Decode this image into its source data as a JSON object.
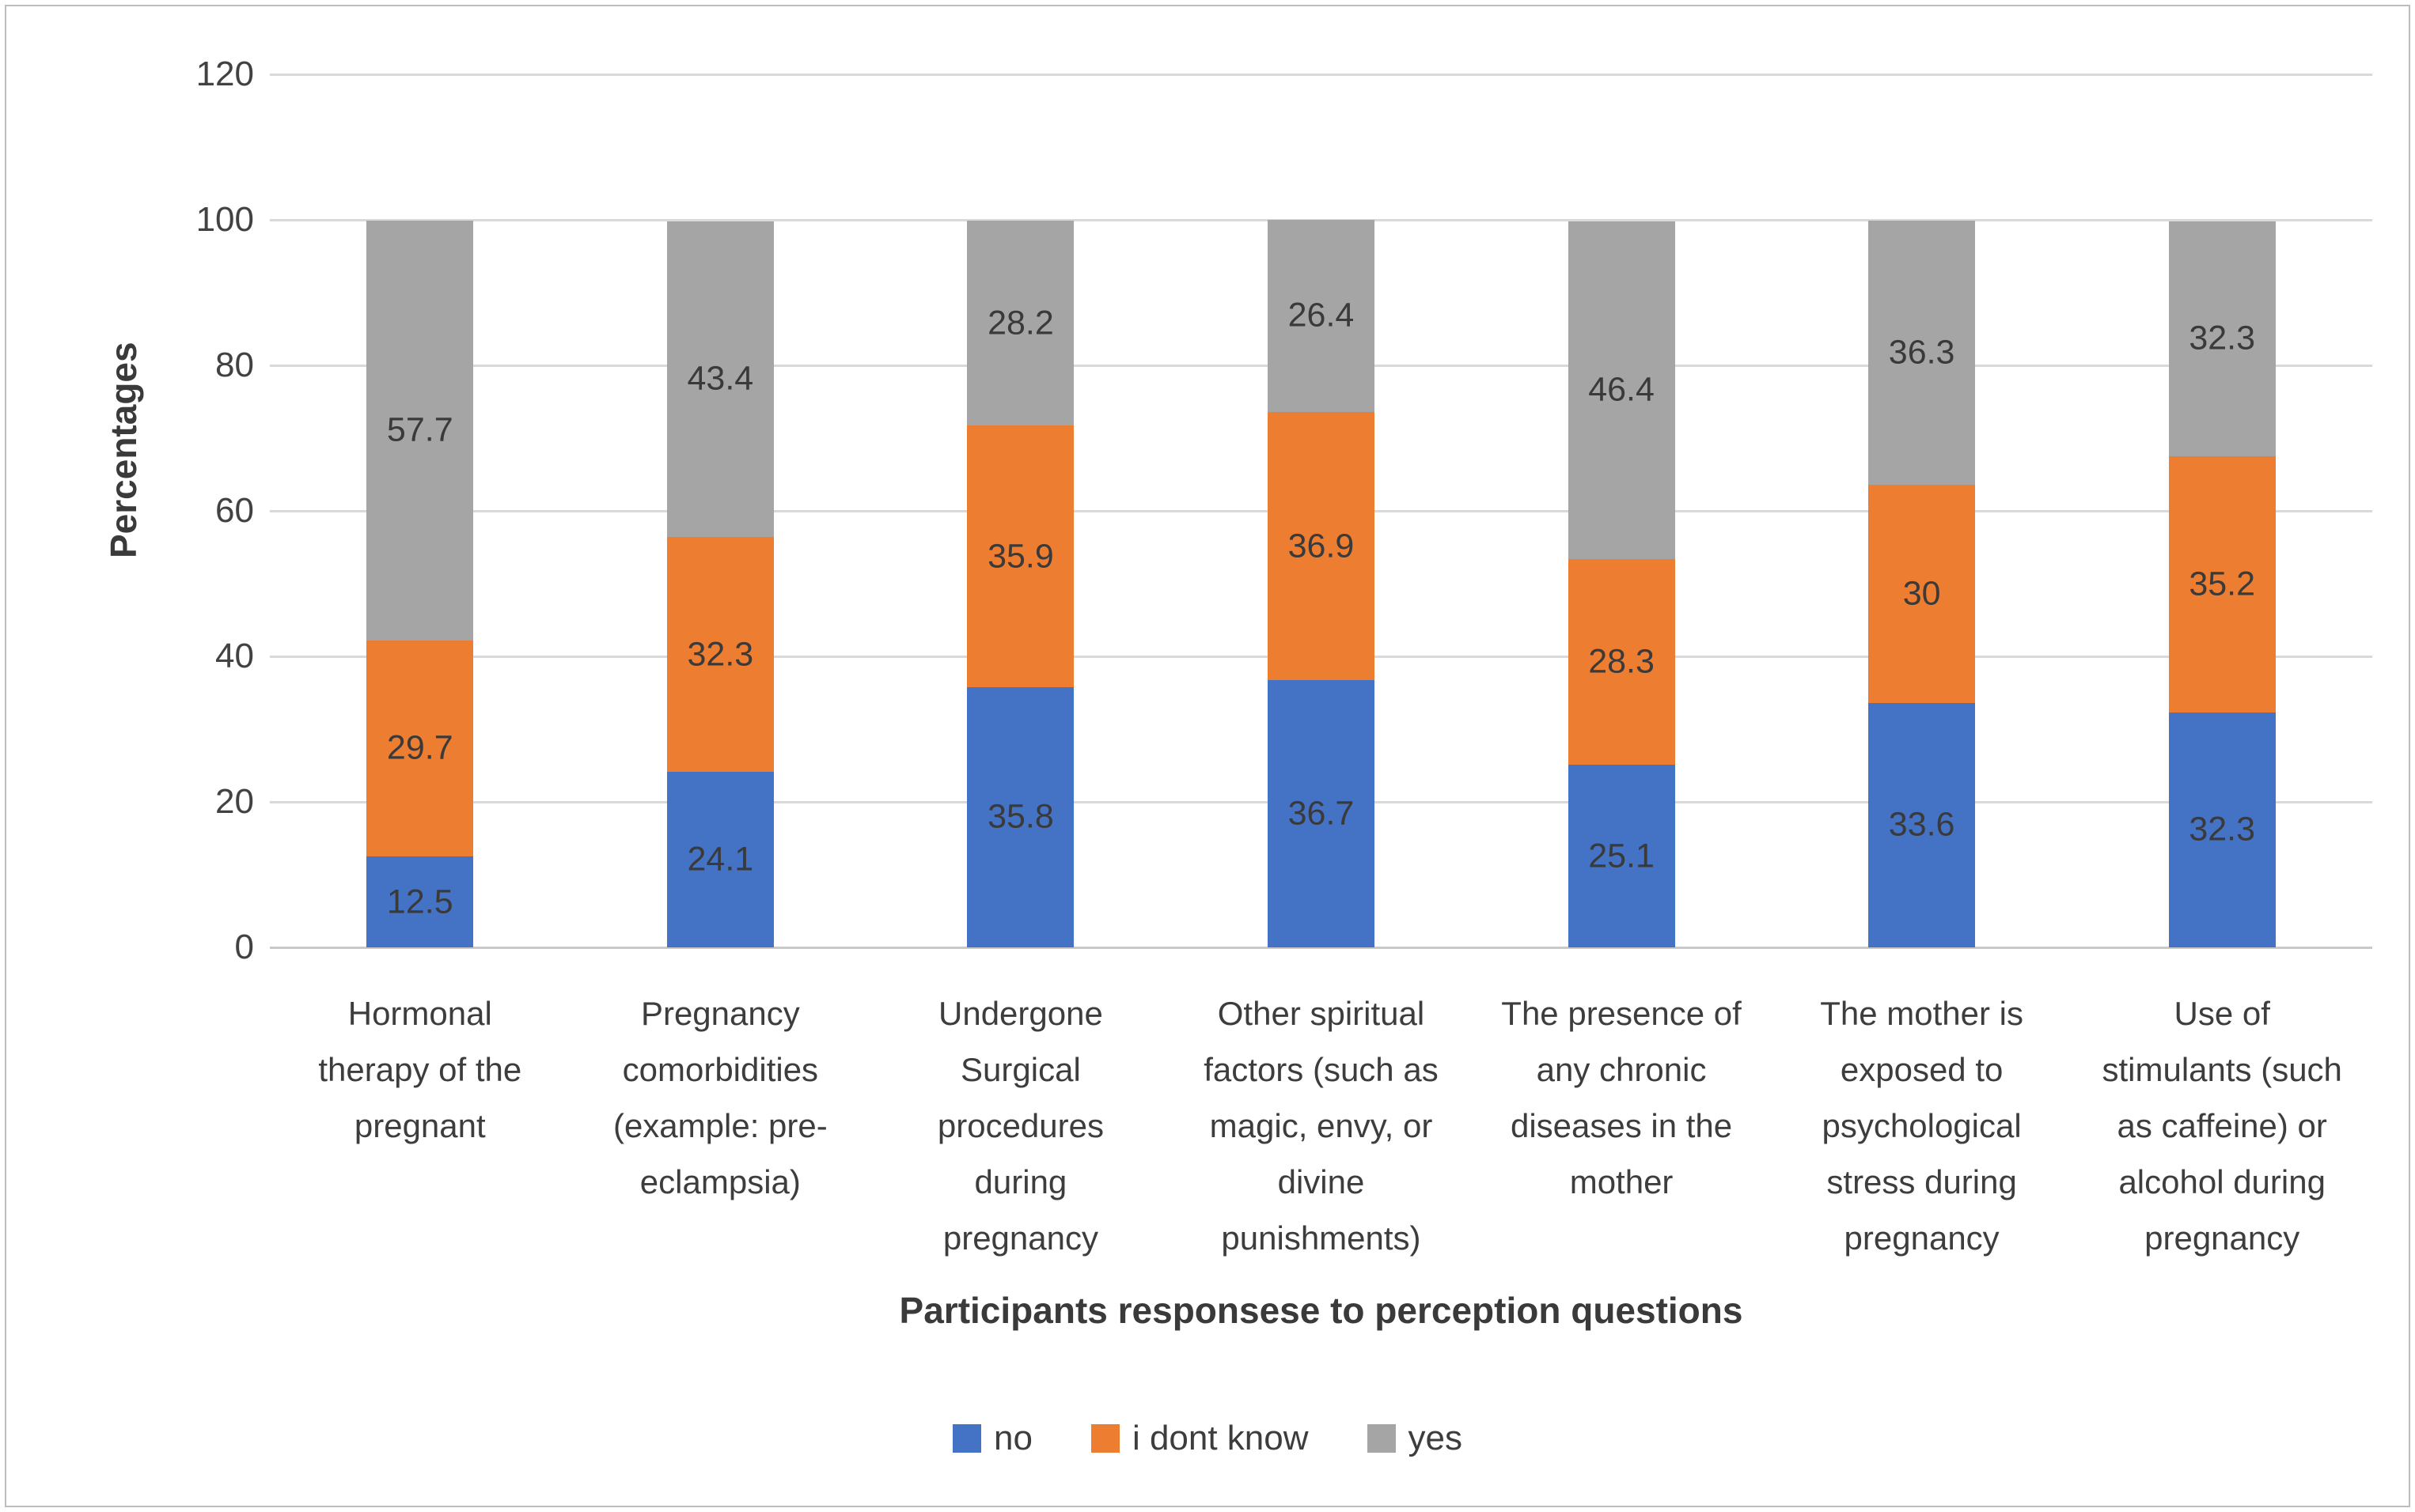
{
  "chart_data": {
    "type": "bar",
    "stacked": true,
    "title": "",
    "xlabel": "Participants responsese to perception questions",
    "ylabel": "Percentages",
    "ylim": [
      0,
      120
    ],
    "yticks": [
      0,
      20,
      40,
      60,
      80,
      100,
      120
    ],
    "grid": true,
    "legend_position": "bottom",
    "categories": [
      {
        "label": "Hormonal therapy of the pregnant",
        "lines": [
          "Hormonal",
          "therapy of the",
          "pregnant"
        ]
      },
      {
        "label": "Pregnancy comorbidities (example: pre-eclampsia)",
        "lines": [
          "Pregnancy",
          "comorbidities",
          "(example: pre-",
          "eclampsia)"
        ]
      },
      {
        "label": "Undergone Surgical procedures during pregnancy",
        "lines": [
          "Undergone",
          "Surgical",
          "procedures",
          "during",
          "pregnancy"
        ]
      },
      {
        "label": "Other spiritual factors (such as magic, envy, or divine punishments)",
        "lines": [
          "Other spiritual",
          "factors (such as",
          "magic, envy, or",
          "divine",
          "punishments)"
        ]
      },
      {
        "label": "The presence of any chronic diseases in the mother",
        "lines": [
          "The presence of",
          "any chronic",
          "diseases in the",
          "mother"
        ]
      },
      {
        "label": "The mother is exposed to psychological stress during pregnancy",
        "lines": [
          "The mother is",
          "exposed to",
          "psychological",
          "stress during",
          "pregnancy"
        ]
      },
      {
        "label": "Use of stimulants (such as caffeine) or alcohol during pregnancy",
        "lines": [
          "Use of",
          "stimulants (such",
          "as caffeine) or",
          "alcohol during",
          "pregnancy"
        ]
      }
    ],
    "series": [
      {
        "name": "no",
        "color": "#4472C4",
        "values": [
          12.5,
          24.1,
          35.8,
          36.7,
          25.1,
          33.6,
          32.3
        ],
        "labels": [
          "12.5",
          "24.1",
          "35.8",
          "36.7",
          "25.1",
          "33.6",
          "32.3"
        ]
      },
      {
        "name": "i dont know",
        "color": "#ED7D31",
        "values": [
          29.7,
          32.3,
          35.9,
          36.9,
          28.3,
          30,
          35.2
        ],
        "labels": [
          "29.7",
          "32.3",
          "35.9",
          "36.9",
          "28.3",
          "30",
          "35.2"
        ]
      },
      {
        "name": "yes",
        "color": "#A5A5A5",
        "values": [
          57.7,
          43.4,
          28.2,
          26.4,
          46.4,
          36.3,
          32.3
        ],
        "labels": [
          "57.7",
          "43.4",
          "28.2",
          "26.4",
          "46.4",
          "36.3",
          "32.3"
        ]
      }
    ]
  },
  "colors": {
    "gridline": "#d9d9d9",
    "axis_line": "#c9c9c9",
    "frame_border": "#bdbdbd",
    "text": "#3d3d3d"
  }
}
